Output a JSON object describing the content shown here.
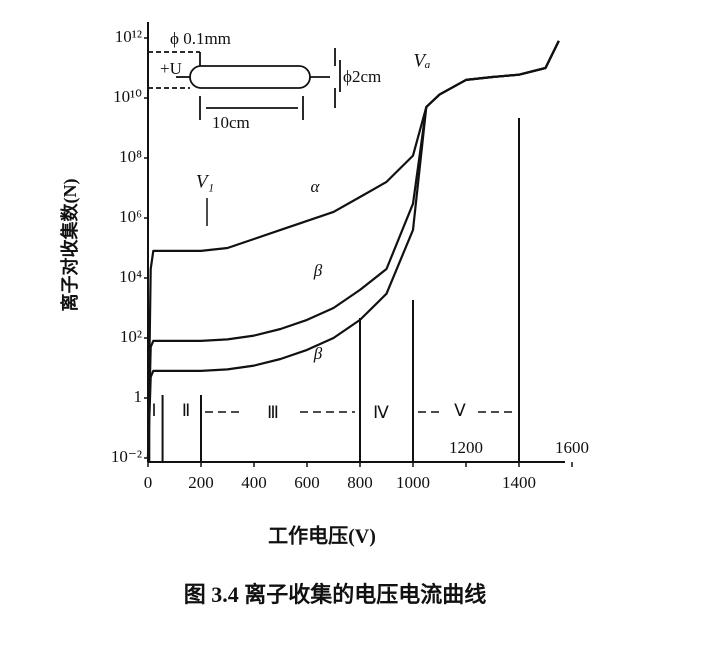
{
  "chart_data": {
    "type": "line",
    "x_label": "工作电压(V)",
    "y_label": "离子对收集数(N)",
    "caption": "图 3.4   离子收集的电压电流曲线",
    "log_y": true,
    "grid": false,
    "color": "#111111",
    "x": [
      0,
      10,
      20,
      100,
      200,
      300,
      400,
      500,
      600,
      700,
      800,
      900,
      1000,
      1050,
      1100,
      1200,
      1300,
      1400,
      1500,
      1550
    ],
    "series": [
      {
        "name": "α",
        "color": "#111111",
        "values": [
          0.01,
          20000,
          80000,
          80000,
          80000,
          100000,
          200000,
          400000,
          800000,
          1600000,
          5000000,
          16000000,
          120000000,
          5000000000,
          13000000000,
          40000000000,
          50000000000,
          60000000000,
          100000000000,
          800000000000
        ]
      },
      {
        "name": "β",
        "color": "#111111",
        "values": [
          0.01,
          50,
          80,
          80,
          80,
          90,
          120,
          200,
          400,
          1000,
          4000,
          20000,
          3000000,
          5000000000,
          13000000000,
          40000000000,
          50000000000,
          60000000000,
          100000000000,
          800000000000
        ]
      },
      {
        "name": "β",
        "color": "#111111",
        "values": [
          0.01,
          5,
          8,
          8,
          8,
          9,
          12,
          20,
          40,
          100,
          400,
          3000,
          400000,
          5000000000,
          13000000000,
          40000000000,
          50000000000,
          60000000000,
          100000000000,
          800000000000
        ]
      }
    ],
    "xlim": [
      0,
      1600
    ],
    "xticks": [
      0,
      200,
      400,
      600,
      800,
      1000,
      1200,
      1400,
      1600
    ],
    "ylim": [
      0.01,
      1000000000000
    ],
    "yticks": [
      {
        "value": 0.01,
        "label": "10⁻²"
      },
      1,
      {
        "value": 100,
        "label": "10²"
      },
      {
        "value": 10000,
        "label": "10⁴"
      },
      {
        "value": 1000000,
        "label": "10⁶"
      },
      {
        "value": 100000000,
        "label": "10⁸"
      },
      {
        "value": 10000000000,
        "label": "10¹⁰"
      },
      {
        "value": 1000000000000,
        "label": "10¹²"
      }
    ],
    "region_boundaries": [
      5,
      55,
      200,
      800,
      1000,
      1400
    ],
    "annotations": [
      "ϕ 0.1mm",
      "+U",
      "10cm",
      "ϕ2cm",
      "V₁",
      "Vₐ",
      "Ⅰ",
      "Ⅱ",
      "Ⅲ",
      "Ⅳ",
      "Ⅴ"
    ]
  }
}
